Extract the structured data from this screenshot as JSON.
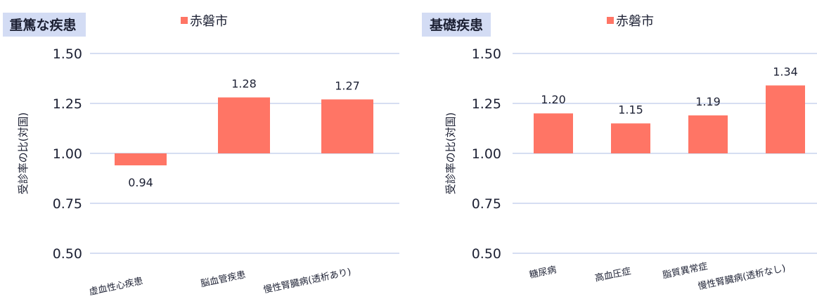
{
  "chart_data": [
    {
      "type": "bar",
      "title": "重篤な疾患",
      "legend": "赤磐市",
      "ylabel": "受診率の比(対国)",
      "ylim": [
        0.5,
        1.5
      ],
      "yticks": [
        "1.50",
        "1.25",
        "1.00",
        "0.75",
        "0.50"
      ],
      "baseline": 1.0,
      "grid": true,
      "categories": [
        "虚血性心疾患",
        "脳血管疾患",
        "慢性腎臓病(透析あり)"
      ],
      "values": [
        0.94,
        1.28,
        1.27
      ],
      "value_labels": [
        "0.94",
        "1.28",
        "1.27"
      ]
    },
    {
      "type": "bar",
      "title": "基礎疾患",
      "legend": "赤磐市",
      "ylabel": "受診率の比(対国)",
      "ylim": [
        0.5,
        1.5
      ],
      "yticks": [
        "1.50",
        "1.25",
        "1.00",
        "0.75",
        "0.50"
      ],
      "baseline": 1.0,
      "grid": true,
      "categories": [
        "糖尿病",
        "高血圧症",
        "脂質異常症",
        "慢性腎臓病(透析なし)"
      ],
      "values": [
        1.2,
        1.15,
        1.19,
        1.34
      ],
      "value_labels": [
        "1.20",
        "1.15",
        "1.19",
        "1.34"
      ]
    }
  ],
  "colors": {
    "bar": "#ff7565",
    "grid": "#c9d3ee",
    "title_bg": "#d3dcf4",
    "text": "#1c2033"
  }
}
